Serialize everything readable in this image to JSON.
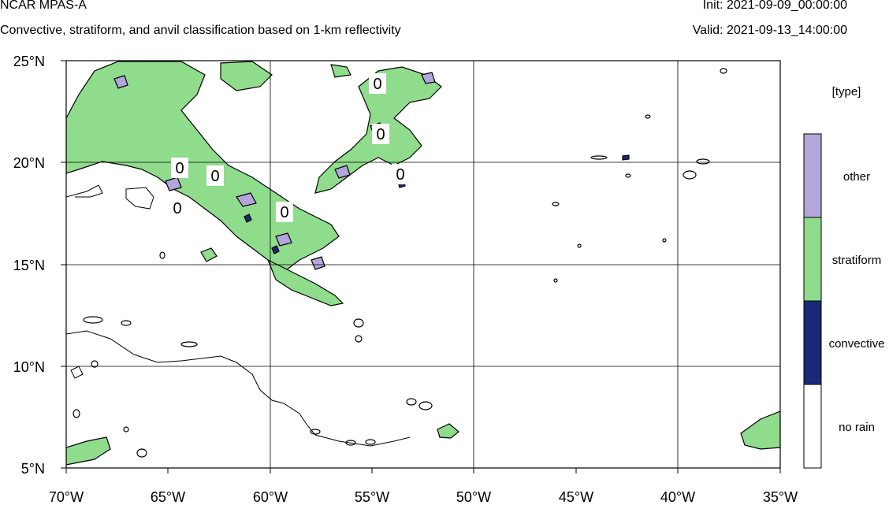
{
  "header": {
    "title": "NCAR MPAS-A",
    "subtitle": "Convective, stratiform, and anvil classification based on 1-km reflectivity",
    "init": "Init: 2021-09-09_00:00:00",
    "valid": "Valid: 2021-09-13_14:00:00"
  },
  "map": {
    "lon_range": [
      -70,
      -35
    ],
    "lat_range": [
      5,
      25
    ],
    "lon_ticks": [
      "70°W",
      "65°W",
      "60°W",
      "55°W",
      "50°W",
      "45°W",
      "40°W",
      "35°W"
    ],
    "lat_ticks": [
      "25°N",
      "20°N",
      "15°N",
      "10°N",
      "5°N"
    ],
    "grid": true,
    "contour_labels": [
      "0",
      "0",
      "0",
      "0",
      "0",
      "0",
      "0"
    ]
  },
  "legend": {
    "title": "[type]",
    "items": [
      {
        "label": "other",
        "color": "#b3a6dc"
      },
      {
        "label": "stratiform",
        "color": "#8fdc8c"
      },
      {
        "label": "convective",
        "color": "#1a2a78"
      },
      {
        "label": "no rain",
        "color": "#ffffff"
      }
    ]
  },
  "colors": {
    "stratiform": "#8fdc8c",
    "other": "#b3a6dc",
    "convective": "#1a2a78",
    "coast": "#000000"
  }
}
